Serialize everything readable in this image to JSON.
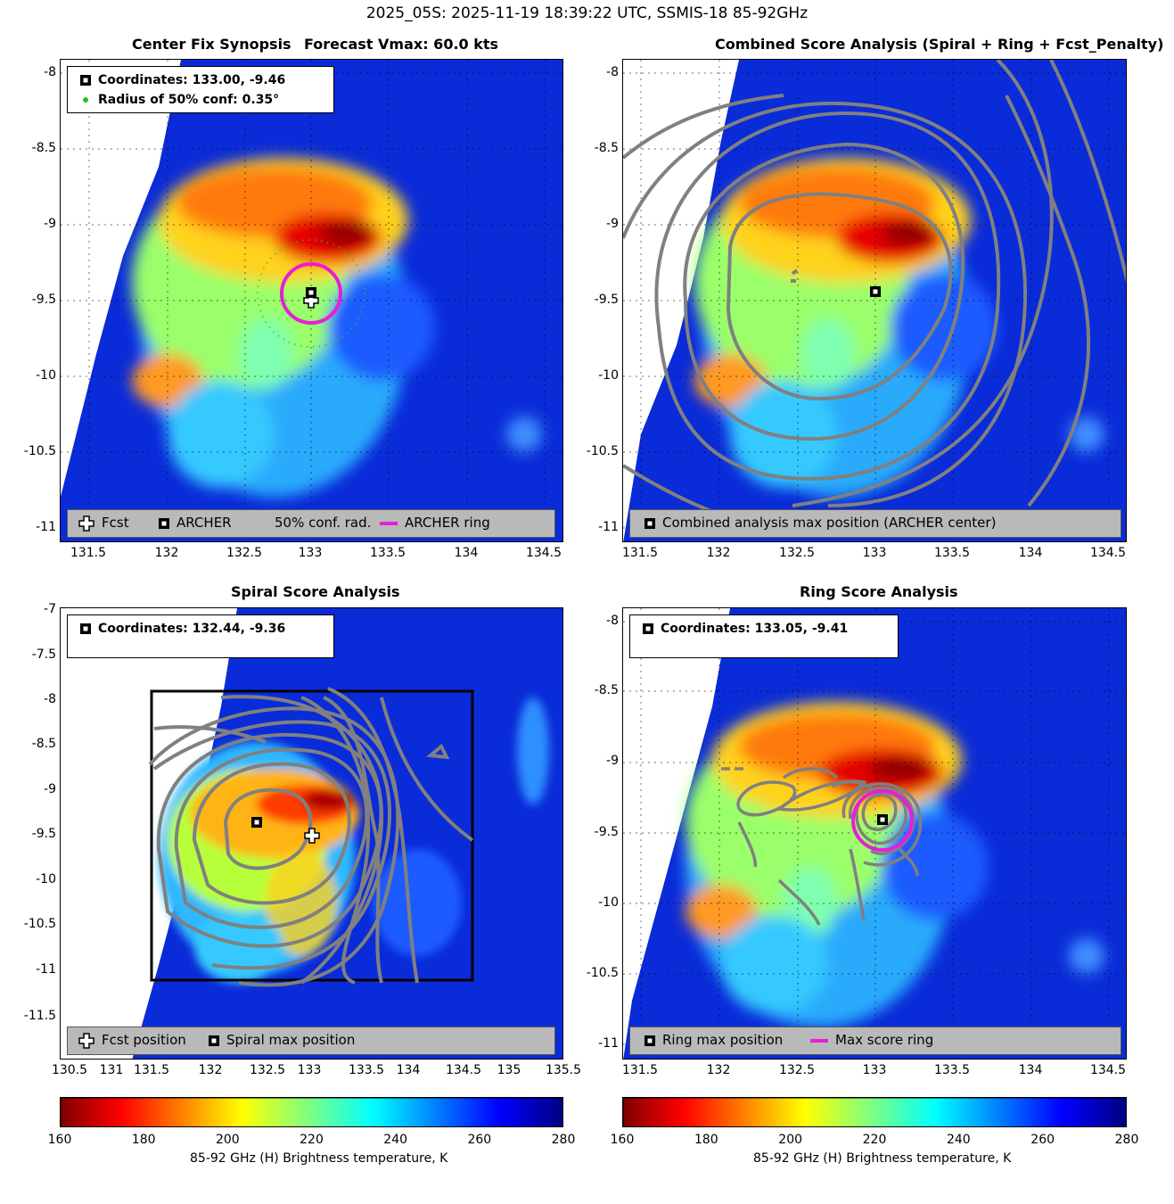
{
  "suptitle": "2025_05S: 2025-11-19 18:39:22 UTC, SSMIS-18 85-92GHz",
  "colors": {
    "ring": "#e81ed8",
    "contour": "#808080",
    "legend_bg": "#b9b9b9",
    "conf_dot": "#22c322"
  },
  "panels": {
    "synopsis": {
      "title_left": "Center Fix Synopsis",
      "title_right": "Forecast Vmax: 60.0 kts",
      "legend_coords": "Coordinates: 133.00, -9.46",
      "legend_radius": "Radius of 50% conf: 0.35°",
      "bottom_legend": [
        "Fcst",
        "ARCHER",
        "50% conf. rad.",
        "ARCHER ring"
      ],
      "xticks": [
        "131.5",
        "132",
        "132.5",
        "133",
        "133.5",
        "134",
        "134.5"
      ],
      "yticks": [
        "-8",
        "-8.5",
        "-9",
        "-9.5",
        "-10",
        "-10.5",
        "-11"
      ]
    },
    "combined": {
      "title": "Combined Score Analysis (Spiral + Ring + Fcst_Penalty)",
      "bottom_legend": [
        "Combined analysis max position (ARCHER center)"
      ],
      "xticks": [
        "131.5",
        "132",
        "132.5",
        "133",
        "133.5",
        "134",
        "134.5"
      ],
      "yticks": [
        "-8",
        "-8.5",
        "-9",
        "-9.5",
        "-10",
        "-10.5",
        "-11"
      ]
    },
    "spiral": {
      "title": "Spiral Score Analysis",
      "legend_coords": "Coordinates: 132.44, -9.36",
      "bottom_legend": [
        "Fcst position",
        "Spiral max position"
      ],
      "xticks": [
        "130.5",
        "131",
        "131.5",
        "132",
        "132.5",
        "133",
        "133.5",
        "134",
        "134.5",
        "135",
        "135.5"
      ],
      "yticks": [
        "-7",
        "-7.5",
        "-8",
        "-8.5",
        "-9",
        "-9.5",
        "-10",
        "-10.5",
        "-11",
        "-11.5"
      ]
    },
    "ring": {
      "title": "Ring Score Analysis",
      "legend_coords": "Coordinates: 133.05, -9.41",
      "bottom_legend": [
        "Ring max position",
        "Max score ring"
      ],
      "xticks": [
        "131.5",
        "132",
        "132.5",
        "133",
        "133.5",
        "134",
        "134.5"
      ],
      "yticks": [
        "-8",
        "-8.5",
        "-9",
        "-9.5",
        "-10",
        "-10.5",
        "-11"
      ]
    }
  },
  "colorbar": {
    "ticks": [
      "160",
      "180",
      "200",
      "220",
      "240",
      "260",
      "280"
    ],
    "label": "85-92 GHz (H) Brightness temperature, K"
  },
  "chart_data": [
    {
      "type": "heatmap",
      "panel": "Center Fix Synopsis",
      "xlim": [
        131.4,
        134.6
      ],
      "ylim": [
        -11.1,
        -7.9
      ],
      "archer_center": [
        133.0,
        -9.46
      ],
      "fcst_position": [
        133.0,
        -9.5
      ],
      "conf_radius_deg": 0.35,
      "ring_radius_deg": 0.2,
      "value_range": [
        160,
        280
      ]
    },
    {
      "type": "heatmap",
      "panel": "Combined Score Analysis",
      "xlim": [
        131.4,
        134.6
      ],
      "ylim": [
        -11.1,
        -7.9
      ],
      "max_position": [
        133.0,
        -9.46
      ],
      "value_range": [
        160,
        280
      ]
    },
    {
      "type": "heatmap",
      "panel": "Spiral Score Analysis",
      "xlim": [
        130.4,
        135.6
      ],
      "ylim": [
        -11.9,
        -6.9
      ],
      "spiral_max": [
        132.44,
        -9.36
      ],
      "fcst_position": [
        133.0,
        -9.5
      ],
      "search_box": [
        [
          131.3,
          -7.9
        ],
        [
          134.55,
          -11.1
        ]
      ],
      "value_range": [
        160,
        280
      ]
    },
    {
      "type": "heatmap",
      "panel": "Ring Score Analysis",
      "xlim": [
        131.4,
        134.6
      ],
      "ylim": [
        -11.1,
        -7.9
      ],
      "ring_max": [
        133.05,
        -9.41
      ],
      "ring_radius_deg": 0.2,
      "value_range": [
        160,
        280
      ]
    }
  ]
}
